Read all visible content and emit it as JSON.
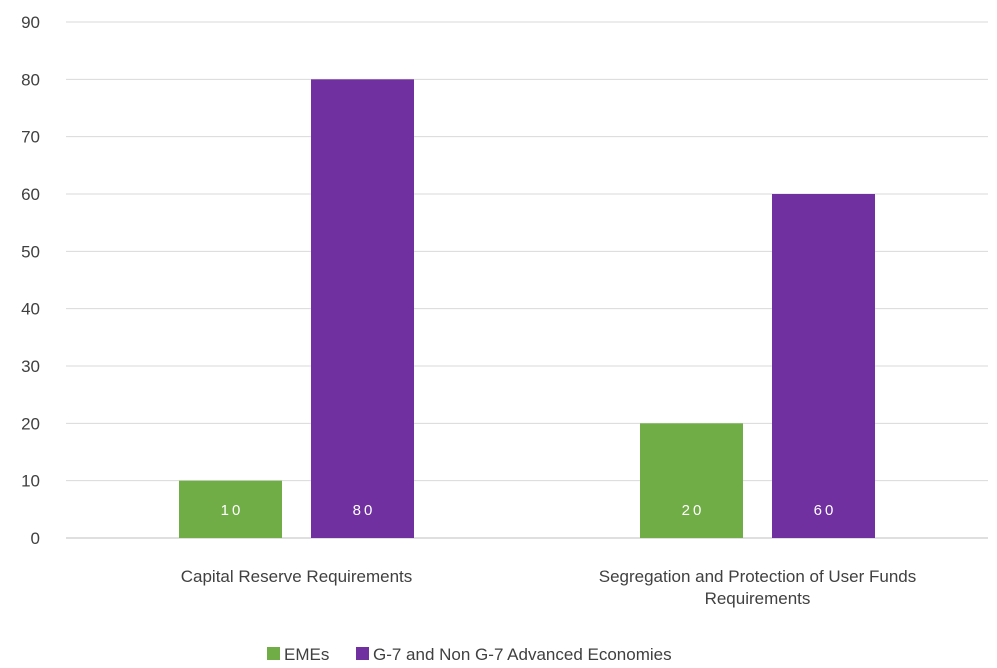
{
  "chart_data": {
    "type": "bar",
    "categories": [
      "Capital Reserve Requirements",
      "Segregation and Protection of User Funds Requirements"
    ],
    "category_lines": [
      [
        "Capital Reserve Requirements"
      ],
      [
        "Segregation and Protection of User Funds",
        "Requirements"
      ]
    ],
    "series": [
      {
        "name": "EMEs",
        "values": [
          10,
          20
        ],
        "color": "#70ad47"
      },
      {
        "name": "G-7 and Non G-7 Advanced Economies",
        "values": [
          80,
          60
        ],
        "color": "#7030a0"
      }
    ],
    "title": "",
    "xlabel": "",
    "ylabel": "",
    "ylim": [
      0,
      90
    ],
    "yticks": [
      0,
      10,
      20,
      30,
      40,
      50,
      60,
      70,
      80,
      90
    ],
    "grid": true,
    "gridline_color": "#d9d9d9",
    "legend_position": "bottom",
    "data_labels": true
  }
}
